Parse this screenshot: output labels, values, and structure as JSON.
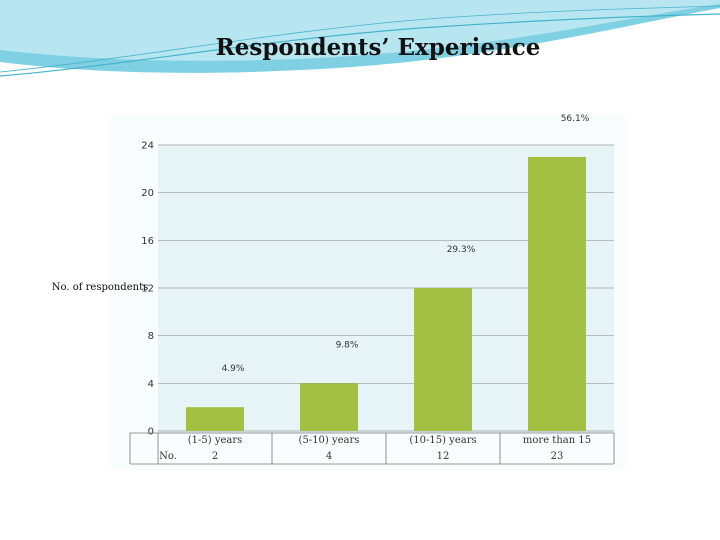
{
  "slide": {
    "title": "Respondents’ Experience"
  },
  "colors": {
    "bar": "#a4c043",
    "plot_bg": "#e6f4f7",
    "grid": "#9a9a9a",
    "banner": "#5ec2d8"
  },
  "chart_data": {
    "type": "bar",
    "title": "",
    "ylabel": "No. of respondents",
    "ylim": [
      0,
      24
    ],
    "yticks": [
      0,
      4,
      8,
      12,
      16,
      20,
      24
    ],
    "categories": [
      "(1-5) years",
      "(5-10) years",
      "(10-15) years",
      "more than 15"
    ],
    "values": [
      2,
      4,
      12,
      23
    ],
    "percent_labels": [
      "4.9%",
      "9.8%",
      "29.3%",
      "56.1%"
    ],
    "table": {
      "row_label": "No.",
      "values": [
        "2",
        "4",
        "12",
        "23"
      ]
    },
    "grid": true
  }
}
